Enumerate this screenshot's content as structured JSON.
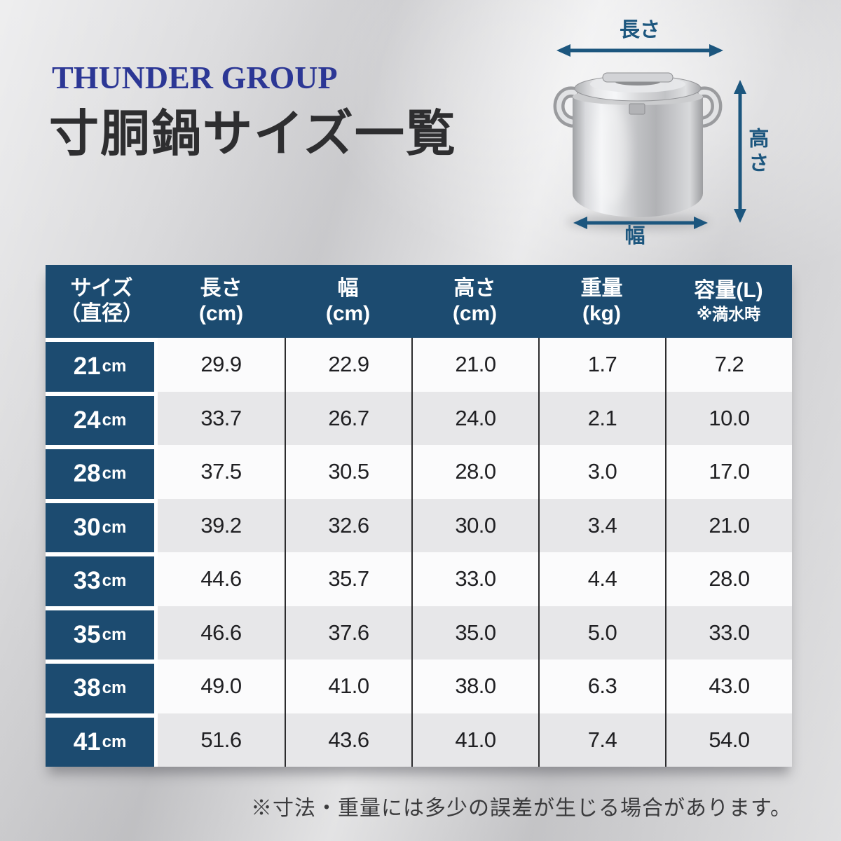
{
  "brand": {
    "name": "THUNDER GROUP"
  },
  "page_title": "寸胴鍋サイズ一覧",
  "diagram": {
    "length_label": "長さ",
    "height_label": "高さ",
    "width_label": "幅"
  },
  "table": {
    "headers": [
      {
        "main": "サイズ",
        "sub": "（直径）"
      },
      {
        "main": "長さ",
        "sub": "(cm)"
      },
      {
        "main": "幅",
        "sub": "(cm)"
      },
      {
        "main": "高さ",
        "sub": "(cm)"
      },
      {
        "main": "重量",
        "sub": "(kg)"
      },
      {
        "main": "容量(L)",
        "sub": "※満水時"
      }
    ],
    "rows": [
      {
        "size": "21",
        "size_unit": "cm",
        "length": "29.9",
        "width": "22.9",
        "height": "21.0",
        "weight": "1.7",
        "capacity": "7.2"
      },
      {
        "size": "24",
        "size_unit": "cm",
        "length": "33.7",
        "width": "26.7",
        "height": "24.0",
        "weight": "2.1",
        "capacity": "10.0"
      },
      {
        "size": "28",
        "size_unit": "cm",
        "length": "37.5",
        "width": "30.5",
        "height": "28.0",
        "weight": "3.0",
        "capacity": "17.0"
      },
      {
        "size": "30",
        "size_unit": "cm",
        "length": "39.2",
        "width": "32.6",
        "height": "30.0",
        "weight": "3.4",
        "capacity": "21.0"
      },
      {
        "size": "33",
        "size_unit": "cm",
        "length": "44.6",
        "width": "35.7",
        "height": "33.0",
        "weight": "4.4",
        "capacity": "28.0"
      },
      {
        "size": "35",
        "size_unit": "cm",
        "length": "46.6",
        "width": "37.6",
        "height": "35.0",
        "weight": "5.0",
        "capacity": "33.0"
      },
      {
        "size": "38",
        "size_unit": "cm",
        "length": "49.0",
        "width": "41.0",
        "height": "38.0",
        "weight": "6.3",
        "capacity": "43.0"
      },
      {
        "size": "41",
        "size_unit": "cm",
        "length": "51.6",
        "width": "43.6",
        "height": "41.0",
        "weight": "7.4",
        "capacity": "54.0"
      }
    ]
  },
  "footnote": "※寸法・重量には多少の誤差が生じる場合があります。",
  "colors": {
    "header_blue": "#1c4b70",
    "brand_blue": "#2c3795",
    "dimension_blue": "#1c567e",
    "row_alt_gray": "#e7e7e9"
  }
}
